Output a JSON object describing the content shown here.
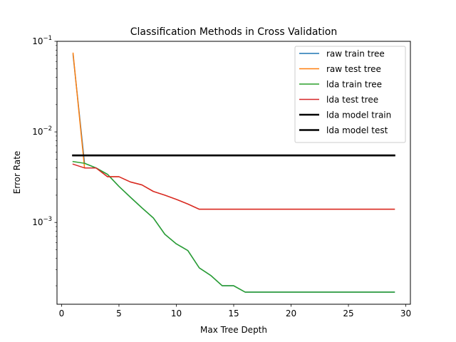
{
  "chart_data": {
    "type": "line",
    "title": "Classification Methods in Cross Validation",
    "xlabel": "Max Tree Depth",
    "ylabel": "Error Rate",
    "xlim": [
      -0.4,
      30.4
    ],
    "ylim": [
      0.000125,
      0.1
    ],
    "yscale": "log",
    "xticks": [
      0,
      5,
      10,
      15,
      20,
      25,
      30
    ],
    "xtick_labels": [
      "0",
      "5",
      "10",
      "15",
      "20",
      "25",
      "30"
    ],
    "yticks": [
      0.001,
      0.01,
      0.1
    ],
    "ytick_labels": [
      {
        "base": "10",
        "exp": "−3"
      },
      {
        "base": "10",
        "exp": "−2"
      },
      {
        "base": "10",
        "exp": "−1"
      }
    ],
    "grid": false,
    "legend_position": "top-right",
    "series": [
      {
        "name": "raw train tree",
        "color": "#1f77b4",
        "width": 1.5,
        "x": [
          1,
          2,
          3,
          4,
          5,
          6,
          7,
          8,
          9,
          10,
          11,
          12,
          13,
          14,
          15,
          16,
          17,
          18,
          19,
          20,
          21,
          22,
          23,
          24,
          25,
          26,
          27,
          28,
          29
        ],
        "y": [
          0.071,
          0.0045,
          0.004,
          0.0034,
          0.0025,
          0.0019,
          0.00145,
          0.00112,
          0.00074,
          0.00058,
          0.00049,
          0.000315,
          0.00026,
          0.0002,
          0.0002,
          0.00017,
          0.00017,
          0.00017,
          0.00017,
          0.00017,
          0.00017,
          0.00017,
          0.00017,
          0.00017,
          0.00017,
          0.00017,
          0.00017,
          0.00017,
          0.00017
        ]
      },
      {
        "name": "raw test tree",
        "color": "#ff7f0e",
        "width": 1.5,
        "x": [
          1,
          2,
          3,
          4,
          5,
          6,
          7,
          8,
          9,
          10,
          11,
          12,
          13,
          14,
          15,
          16,
          17,
          18,
          19,
          20,
          21,
          22,
          23,
          24,
          25,
          26,
          27,
          28,
          29
        ],
        "y": [
          0.074,
          0.004,
          0.004,
          0.0032,
          0.0032,
          0.0028,
          0.0026,
          0.0022,
          0.002,
          0.0018,
          0.0016,
          0.0014,
          0.0014,
          0.0014,
          0.0014,
          0.0014,
          0.0014,
          0.0014,
          0.0014,
          0.0014,
          0.0014,
          0.0014,
          0.0014,
          0.0014,
          0.0014,
          0.0014,
          0.0014,
          0.0014,
          0.0014
        ]
      },
      {
        "name": "lda train tree",
        "color": "#2ca02c",
        "width": 1.5,
        "x": [
          1,
          2,
          3,
          4,
          5,
          6,
          7,
          8,
          9,
          10,
          11,
          12,
          13,
          14,
          15,
          16,
          17,
          18,
          19,
          20,
          21,
          22,
          23,
          24,
          25,
          26,
          27,
          28,
          29
        ],
        "y": [
          0.0047,
          0.0045,
          0.004,
          0.0034,
          0.0025,
          0.0019,
          0.00145,
          0.00112,
          0.00074,
          0.00058,
          0.00049,
          0.000315,
          0.00026,
          0.0002,
          0.0002,
          0.00017,
          0.00017,
          0.00017,
          0.00017,
          0.00017,
          0.00017,
          0.00017,
          0.00017,
          0.00017,
          0.00017,
          0.00017,
          0.00017,
          0.00017,
          0.00017
        ]
      },
      {
        "name": "lda test tree",
        "color": "#d62728",
        "width": 1.5,
        "x": [
          1,
          2,
          3,
          4,
          5,
          6,
          7,
          8,
          9,
          10,
          11,
          12,
          13,
          14,
          15,
          16,
          17,
          18,
          19,
          20,
          21,
          22,
          23,
          24,
          25,
          26,
          27,
          28,
          29
        ],
        "y": [
          0.0044,
          0.004,
          0.004,
          0.0032,
          0.0032,
          0.0028,
          0.0026,
          0.0022,
          0.002,
          0.0018,
          0.0016,
          0.0014,
          0.0014,
          0.0014,
          0.0014,
          0.0014,
          0.0014,
          0.0014,
          0.0014,
          0.0014,
          0.0014,
          0.0014,
          0.0014,
          0.0014,
          0.0014,
          0.0014,
          0.0014,
          0.0014,
          0.0014
        ]
      },
      {
        "name": "lda model train",
        "color": "#000000",
        "width": 2.5,
        "x": [
          1,
          29
        ],
        "y": [
          0.0055,
          0.0055
        ]
      },
      {
        "name": "lda model test",
        "color": "#000000",
        "width": 2.5,
        "x": [
          1,
          29
        ],
        "y": [
          0.0055,
          0.0055
        ]
      }
    ]
  }
}
